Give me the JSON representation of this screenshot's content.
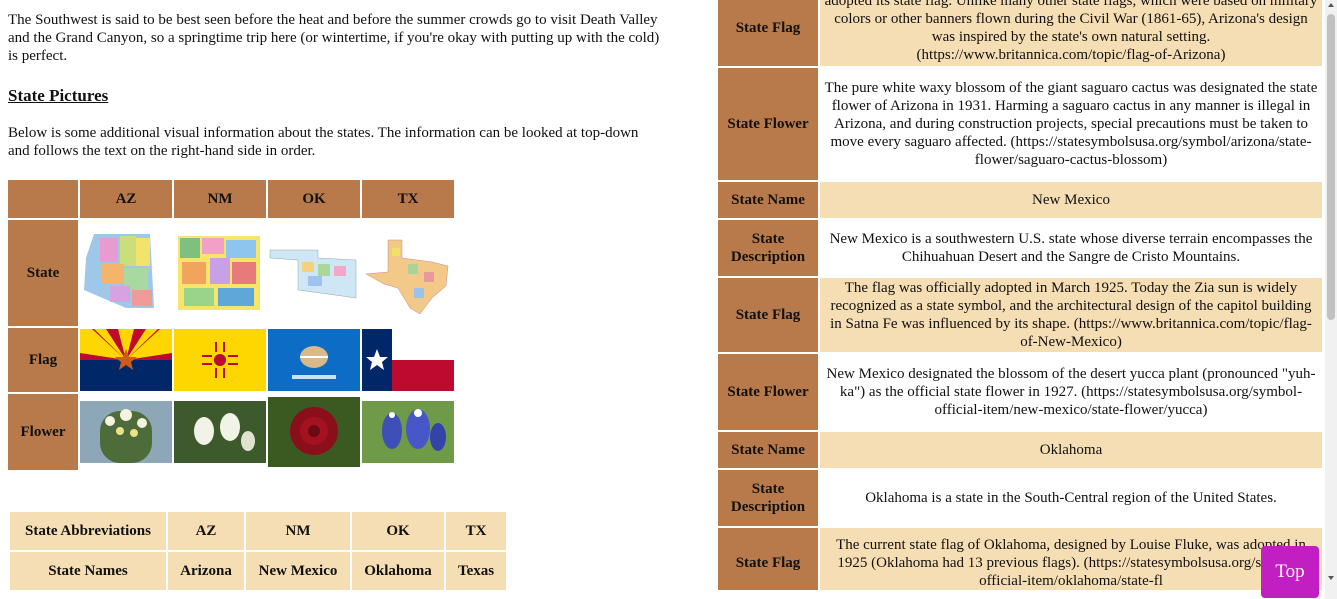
{
  "intro": "The Southwest is said to be best seen before the heat and before the summer crowds go to visit Death Valley and the Grand Canyon, so a springtime trip here (or wintertime, if you're okay with putting up with the cold) is perfect.",
  "section_heading": "State Pictures",
  "section_text": "Below is some additional visual information about the states. The information can be looked at top-down and follows the text on the right-hand side in order.",
  "pictures_table": {
    "column_headers": [
      "AZ",
      "NM",
      "OK",
      "TX"
    ],
    "row_headers": [
      "State",
      "Flag",
      "Flower"
    ]
  },
  "names_table": {
    "rows": [
      [
        "State Abbreviations",
        "AZ",
        "NM",
        "OK",
        "TX"
      ],
      [
        "State Names",
        "Arizona",
        "New Mexico",
        "Oklahoma",
        "Texas"
      ]
    ]
  },
  "details_table": {
    "rows": [
      [
        "State Flag",
        "adopted its state flag. Unlike many other state flags, which were based on military colors or other banners flown during the Civil War (1861-65), Arizona's design was inspired by the state's own natural setting. (https://www.britannica.com/topic/flag-of-Arizona)"
      ],
      [
        "State Flower",
        "The pure white waxy blossom of the giant saguaro cactus was designated the state flower of Arizona in 1931. Harming a saguaro cactus in any manner is illegal in Arizona, and during construction projects, special precautions must be taken to move every saguaro affected. (https://statesymbolsusa.org/symbol/arizona/state-flower/saguaro-cactus-blossom)"
      ],
      [
        "State Name",
        "New Mexico"
      ],
      [
        "State Description",
        "New Mexico is a southwestern U.S. state whose diverse terrain encompasses the Chihuahuan Desert and the Sangre de Cristo Mountains."
      ],
      [
        "State Flag",
        "The flag was officially adopted in March 1925. Today the Zia sun is widely recognized as a state symbol, and the architectural design of the capitol building in Satna Fe was influenced by its shape. (https://www.britannica.com/topic/flag-of-New-Mexico)"
      ],
      [
        "State Flower",
        "New Mexico designated the blossom of the desert yucca plant (pronounced \"yuh-ka\") as the official state flower in 1927. (https://statesymbolsusa.org/symbol-official-item/new-mexico/state-flower/yucca)"
      ],
      [
        "State Name",
        "Oklahoma"
      ],
      [
        "State Description",
        "Oklahoma is a state in the South-Central region of the United States."
      ],
      [
        "State Flag",
        "The current state flag of Oklahoma, designed by Louise Fluke, was adopted in 1925 (Oklahoma had 13 previous flags). (https://statesymbolsusa.org/symbol-official-item/oklahoma/state-fl"
      ]
    ]
  },
  "top_button": "Top"
}
